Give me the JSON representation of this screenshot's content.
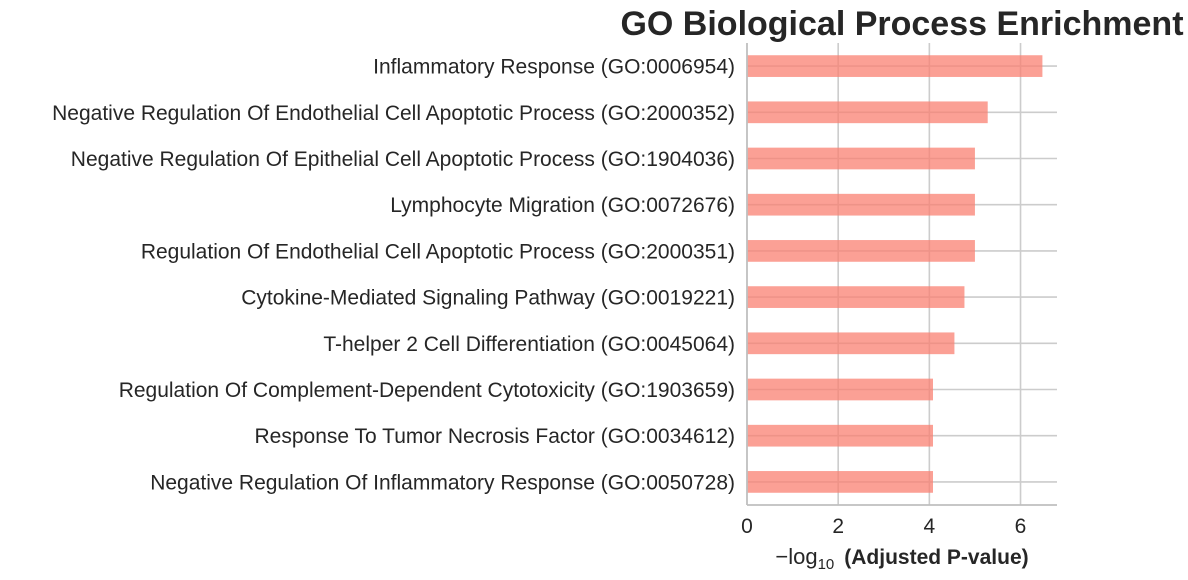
{
  "chart_data": {
    "type": "bar",
    "orientation": "horizontal",
    "title": "GO Biological Process Enrichment",
    "xlabel": {
      "prefix": "−log",
      "subscript": "10",
      "bold_part": "(Adjusted P-value)"
    },
    "ylabel": "",
    "xlim": [
      0,
      6.8
    ],
    "xticks": [
      0,
      2,
      4,
      6
    ],
    "grid": true,
    "bar_color": "#fa8072",
    "categories": [
      "Inflammatory Response (GO:0006954)",
      "Negative Regulation Of Endothelial Cell Apoptotic Process (GO:2000352)",
      "Negative Regulation Of Epithelial Cell Apoptotic Process (GO:1904036)",
      "Lymphocyte Migration (GO:0072676)",
      "Regulation Of Endothelial Cell Apoptotic Process (GO:2000351)",
      "Cytokine-Mediated Signaling Pathway (GO:0019221)",
      "T-helper 2 Cell Differentiation (GO:0045064)",
      "Regulation Of Complement-Dependent Cytotoxicity (GO:1903659)",
      "Response To Tumor Necrosis Factor (GO:0034612)",
      "Negative Regulation Of Inflammatory Response (GO:0050728)"
    ],
    "values": [
      6.48,
      5.28,
      5.0,
      5.0,
      5.0,
      4.77,
      4.55,
      4.08,
      4.08,
      4.08
    ]
  }
}
